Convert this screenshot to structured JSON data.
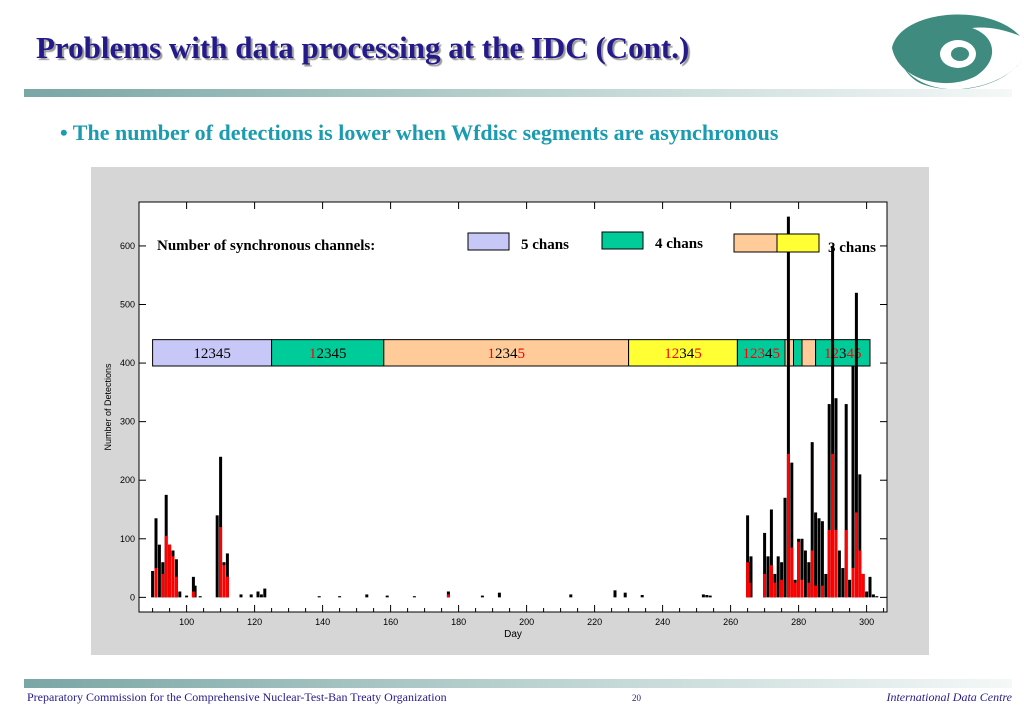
{
  "slide": {
    "title": "Problems with data processing at the IDC (Cont.)",
    "bullet": "• The number of detections is lower when Wfdisc segments are asynchronous",
    "footer_left": "Preparatory Commission for the Comprehensive Nuclear-Test-Ban Treaty Organization",
    "page_number": "20",
    "footer_right": "International Data Centre",
    "logo_icon": "ctbto-eye-logo-icon"
  },
  "colors": {
    "title": "#241a8a",
    "bullet": "#1a9bb0",
    "five_chans": "#c8c8f8",
    "four_chans": "#00cc99",
    "three_chans_a": "#ffcc99",
    "three_chans_b": "#ffff33",
    "total_bar": "#000000",
    "subset_bar": "#ff0000"
  },
  "chart_data": {
    "type": "bar",
    "xlabel": "Day",
    "ylabel": "Number of Detections",
    "xlim": [
      86,
      306
    ],
    "ylim": [
      -25,
      675
    ],
    "xticks": [
      100,
      120,
      140,
      160,
      180,
      200,
      220,
      240,
      260,
      280,
      300
    ],
    "yticks": [
      0,
      100,
      200,
      300,
      400,
      500,
      600
    ],
    "legend": {
      "title": "Number of synchronous channels:",
      "entries": [
        {
          "label": "5 chans",
          "color_key": "five_chans"
        },
        {
          "label": "4 chans",
          "color_key": "four_chans"
        },
        {
          "label": "3 chans",
          "color_key": "three_chans_a",
          "color_key_2": "three_chans_b"
        }
      ]
    },
    "segments": [
      {
        "x0": 90,
        "x1": 125,
        "color_key": "five_chans",
        "label": "12345",
        "red_digits": []
      },
      {
        "x0": 125,
        "x1": 158,
        "color_key": "four_chans",
        "label": "12345",
        "red_digits": [
          0
        ]
      },
      {
        "x0": 158,
        "x1": 230,
        "color_key": "three_chans_a",
        "label": "12345",
        "red_digits": [
          0,
          4
        ]
      },
      {
        "x0": 230,
        "x1": 262,
        "color_key": "three_chans_b",
        "label": "12345",
        "red_digits": [
          0,
          1,
          4
        ]
      },
      {
        "x0": 262,
        "x1": 276,
        "color_key": "four_chans",
        "label": "12345",
        "red_digits": [
          0,
          1,
          2,
          4
        ]
      },
      {
        "x0": 276,
        "x1": 278.5,
        "color_key": "three_chans_a",
        "label": "",
        "red_digits": []
      },
      {
        "x0": 278.5,
        "x1": 281,
        "color_key": "four_chans",
        "label": "",
        "red_digits": []
      },
      {
        "x0": 281,
        "x1": 285,
        "color_key": "three_chans_a",
        "label": "",
        "red_digits": []
      },
      {
        "x0": 285,
        "x1": 301,
        "color_key": "four_chans",
        "label": "12345",
        "red_digits": [
          0,
          1,
          3,
          4
        ]
      }
    ],
    "series": [
      {
        "name": "",
        "color_key": "total_bar",
        "x": [
          90,
          91,
          92,
          93,
          94,
          95,
          96,
          97,
          98,
          100,
          102,
          102.5,
          104,
          109,
          110,
          111,
          112,
          116,
          119,
          121,
          122,
          123,
          139,
          145,
          153,
          159,
          167,
          177,
          187,
          192,
          213,
          226,
          229,
          234,
          252,
          253,
          254,
          265,
          265.5,
          266,
          270,
          271,
          272,
          273,
          274,
          275,
          276,
          277,
          278,
          279,
          280,
          281,
          282,
          283,
          284,
          285,
          286,
          287,
          288,
          289,
          290,
          291,
          292,
          293,
          294,
          295,
          296,
          297,
          298,
          299,
          300,
          301,
          302,
          303
        ],
        "values": [
          45,
          135,
          90,
          60,
          175,
          90,
          80,
          65,
          10,
          3,
          35,
          20,
          2,
          140,
          240,
          60,
          75,
          5,
          5,
          10,
          5,
          15,
          2,
          2,
          5,
          3,
          2,
          10,
          3,
          8,
          5,
          12,
          8,
          4,
          5,
          4,
          3,
          140,
          60,
          70,
          110,
          70,
          150,
          40,
          70,
          60,
          170,
          650,
          230,
          30,
          100,
          100,
          80,
          60,
          265,
          145,
          135,
          130,
          40,
          330,
          600,
          340,
          80,
          50,
          330,
          30,
          395,
          520,
          210,
          40,
          10,
          35,
          5,
          2
        ]
      },
      {
        "name": "",
        "color_key": "subset_bar",
        "x": [
          91,
          93,
          94,
          95,
          96,
          97,
          102,
          110,
          111,
          112,
          177,
          265,
          265.5,
          270,
          272,
          273,
          275,
          277,
          278,
          279,
          280,
          281,
          283,
          284,
          285,
          287,
          289,
          290,
          291,
          294,
          296,
          297,
          298,
          299
        ],
        "values": [
          50,
          40,
          105,
          90,
          70,
          35,
          10,
          120,
          55,
          35,
          5,
          60,
          25,
          40,
          55,
          25,
          30,
          245,
          85,
          25,
          95,
          30,
          25,
          80,
          20,
          20,
          115,
          245,
          115,
          115,
          50,
          145,
          80,
          40
        ]
      }
    ]
  }
}
